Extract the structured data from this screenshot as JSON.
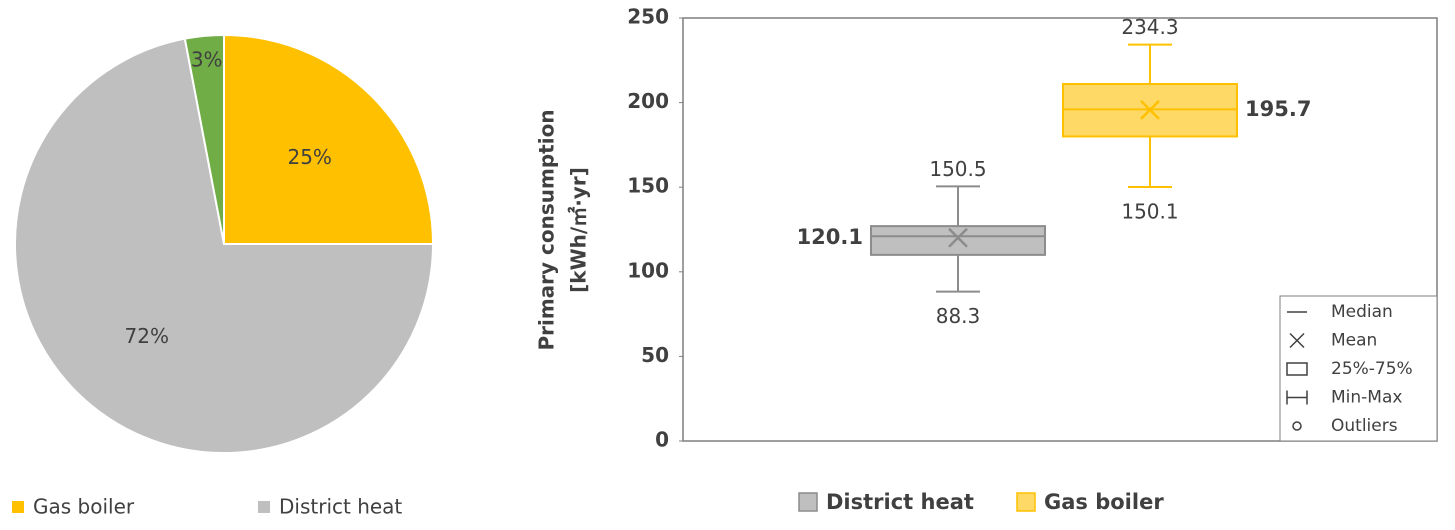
{
  "chart_data": [
    {
      "type": "pie",
      "categories": [
        "Gas boiler",
        "District heat",
        null
      ],
      "values": [
        25,
        72,
        3
      ],
      "value_labels": [
        "25%",
        "72%",
        "3%"
      ],
      "colors": [
        "#ffc000",
        "#bfbfbf",
        "#70ad47"
      ]
    },
    {
      "type": "box",
      "ylabel": [
        "Primary consumption",
        "[kWh/㎡·yr]"
      ],
      "ylim": [
        0,
        250
      ],
      "yticks": [
        0,
        50,
        100,
        150,
        200,
        250
      ],
      "legend_key": [
        "Median",
        "Mean",
        "25%-75%",
        "Min-Max",
        "Outliers"
      ],
      "series": [
        {
          "name": "District heat",
          "color": "#bfbfbf",
          "edge": "#8c8c8c",
          "min": 88.3,
          "q1": 110,
          "median": 121,
          "q3": 127,
          "max": 150.5,
          "mean": 120.1
        },
        {
          "name": "Gas boiler",
          "color": "#ffd966",
          "edge": "#ffc000",
          "min": 150.1,
          "q1": 180,
          "median": 196,
          "q3": 211,
          "max": 234.3,
          "mean": 195.7
        }
      ]
    }
  ]
}
